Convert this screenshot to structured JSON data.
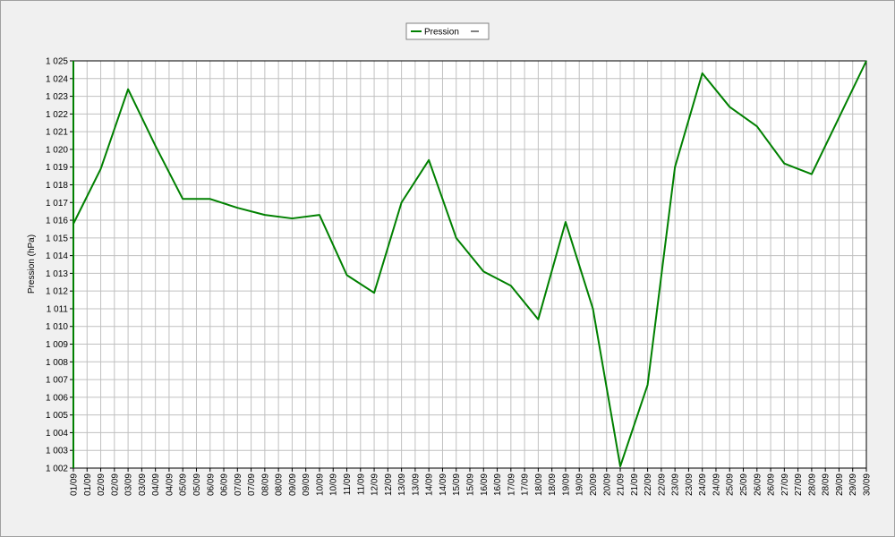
{
  "chart_data": {
    "type": "line",
    "y_label": "Pression (hPa)",
    "xlim": [
      0,
      58
    ],
    "xticks": [
      {
        "value": 0,
        "label": "01/09"
      },
      {
        "value": 1,
        "label": "01/09"
      },
      {
        "value": 2,
        "label": "02/09"
      },
      {
        "value": 3,
        "label": "02/09"
      },
      {
        "value": 4,
        "label": "03/09"
      },
      {
        "value": 5,
        "label": "03/09"
      },
      {
        "value": 6,
        "label": "04/09"
      },
      {
        "value": 7,
        "label": "04/09"
      },
      {
        "value": 8,
        "label": "05/09"
      },
      {
        "value": 9,
        "label": "05/09"
      },
      {
        "value": 10,
        "label": "06/09"
      },
      {
        "value": 11,
        "label": "06/09"
      },
      {
        "value": 12,
        "label": "07/09"
      },
      {
        "value": 13,
        "label": "07/09"
      },
      {
        "value": 14,
        "label": "08/09"
      },
      {
        "value": 15,
        "label": "08/09"
      },
      {
        "value": 16,
        "label": "09/09"
      },
      {
        "value": 17,
        "label": "09/09"
      },
      {
        "value": 18,
        "label": "10/09"
      },
      {
        "value": 19,
        "label": "10/09"
      },
      {
        "value": 20,
        "label": "11/09"
      },
      {
        "value": 21,
        "label": "11/09"
      },
      {
        "value": 22,
        "label": "12/09"
      },
      {
        "value": 23,
        "label": "12/09"
      },
      {
        "value": 24,
        "label": "13/09"
      },
      {
        "value": 25,
        "label": "13/09"
      },
      {
        "value": 26,
        "label": "14/09"
      },
      {
        "value": 27,
        "label": "14/09"
      },
      {
        "value": 28,
        "label": "15/09"
      },
      {
        "value": 29,
        "label": "15/09"
      },
      {
        "value": 30,
        "label": "16/09"
      },
      {
        "value": 31,
        "label": "16/09"
      },
      {
        "value": 32,
        "label": "17/09"
      },
      {
        "value": 33,
        "label": "17/09"
      },
      {
        "value": 34,
        "label": "18/09"
      },
      {
        "value": 35,
        "label": "18/09"
      },
      {
        "value": 36,
        "label": "19/09"
      },
      {
        "value": 37,
        "label": "19/09"
      },
      {
        "value": 38,
        "label": "20/09"
      },
      {
        "value": 39,
        "label": "20/09"
      },
      {
        "value": 40,
        "label": "21/09"
      },
      {
        "value": 41,
        "label": "21/09"
      },
      {
        "value": 42,
        "label": "22/09"
      },
      {
        "value": 43,
        "label": "22/09"
      },
      {
        "value": 44,
        "label": "23/09"
      },
      {
        "value": 45,
        "label": "23/09"
      },
      {
        "value": 46,
        "label": "24/09"
      },
      {
        "value": 47,
        "label": "24/09"
      },
      {
        "value": 48,
        "label": "25/09"
      },
      {
        "value": 49,
        "label": "25/09"
      },
      {
        "value": 50,
        "label": "26/09"
      },
      {
        "value": 51,
        "label": "26/09"
      },
      {
        "value": 52,
        "label": "27/09"
      },
      {
        "value": 53,
        "label": "27/09"
      },
      {
        "value": 54,
        "label": "28/09"
      },
      {
        "value": 55,
        "label": "28/09"
      },
      {
        "value": 56,
        "label": "29/09"
      },
      {
        "value": 57,
        "label": "29/09"
      },
      {
        "value": 58,
        "label": "30/09"
      }
    ],
    "ylim": [
      1002,
      1025
    ],
    "yticks": [
      {
        "value": 1002,
        "label": "1 002"
      },
      {
        "value": 1003,
        "label": "1 003"
      },
      {
        "value": 1004,
        "label": "1 004"
      },
      {
        "value": 1005,
        "label": "1 005"
      },
      {
        "value": 1006,
        "label": "1 006"
      },
      {
        "value": 1007,
        "label": "1 007"
      },
      {
        "value": 1008,
        "label": "1 008"
      },
      {
        "value": 1009,
        "label": "1 009"
      },
      {
        "value": 1010,
        "label": "1 010"
      },
      {
        "value": 1011,
        "label": "1 011"
      },
      {
        "value": 1012,
        "label": "1 012"
      },
      {
        "value": 1013,
        "label": "1 013"
      },
      {
        "value": 1014,
        "label": "1 014"
      },
      {
        "value": 1015,
        "label": "1 015"
      },
      {
        "value": 1016,
        "label": "1 016"
      },
      {
        "value": 1017,
        "label": "1 017"
      },
      {
        "value": 1018,
        "label": "1 018"
      },
      {
        "value": 1019,
        "label": "1 019"
      },
      {
        "value": 1020,
        "label": "1 020"
      },
      {
        "value": 1021,
        "label": "1 021"
      },
      {
        "value": 1022,
        "label": "1 022"
      },
      {
        "value": 1023,
        "label": "1 023"
      },
      {
        "value": 1024,
        "label": "1 024"
      },
      {
        "value": 1025,
        "label": "1 025"
      }
    ],
    "grid": true,
    "legend": "top",
    "series": [
      {
        "name": "Pression",
        "color": "#008000",
        "x": [
          0,
          2,
          4,
          6,
          8,
          10,
          12,
          14,
          16,
          18,
          20,
          22,
          24,
          26,
          28,
          30,
          32,
          34,
          36,
          38,
          40,
          42,
          44,
          46,
          48,
          50,
          52,
          54,
          56,
          58
        ],
        "values": [
          1015.8,
          1018.9,
          1023.4,
          1020.2,
          1017.2,
          1017.2,
          1016.7,
          1016.3,
          1016.1,
          1016.3,
          1012.9,
          1011.9,
          1017.0,
          1019.4,
          1015.0,
          1013.1,
          1012.3,
          1010.4,
          1015.9,
          1011.0,
          1002.1,
          1006.7,
          1019.0,
          1024.3,
          1022.4,
          1021.3,
          1019.2,
          1018.6,
          1021.8,
          1025.0
        ]
      }
    ]
  }
}
